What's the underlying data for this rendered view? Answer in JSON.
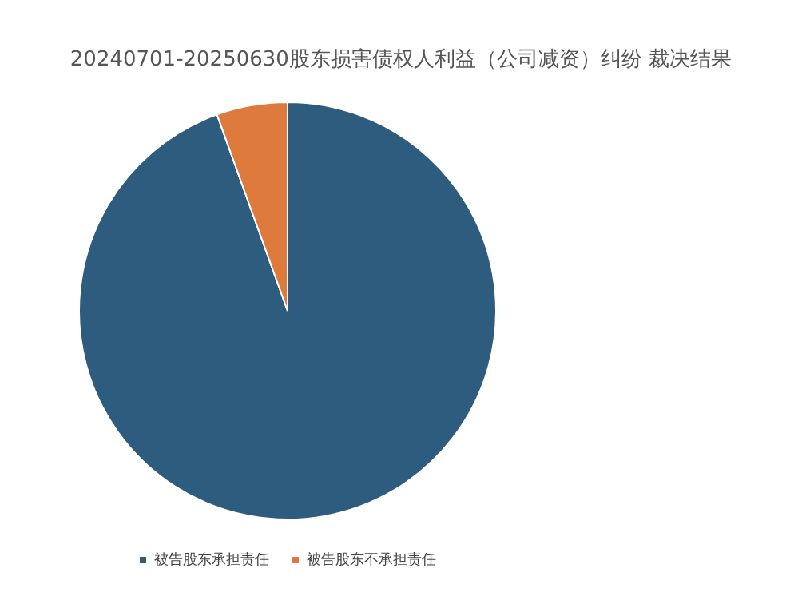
{
  "chart_data": {
    "type": "pie",
    "title": "20240701-20250630股东损害债权人利益（公司减资）纠纷 裁决结果",
    "categories": [
      "被告股东承担责任",
      "被告股东不承担责任"
    ],
    "values": [
      94.5,
      5.5
    ],
    "colors": [
      "#2e5c7e",
      "#dd7a3c"
    ],
    "legend": "bottom"
  }
}
